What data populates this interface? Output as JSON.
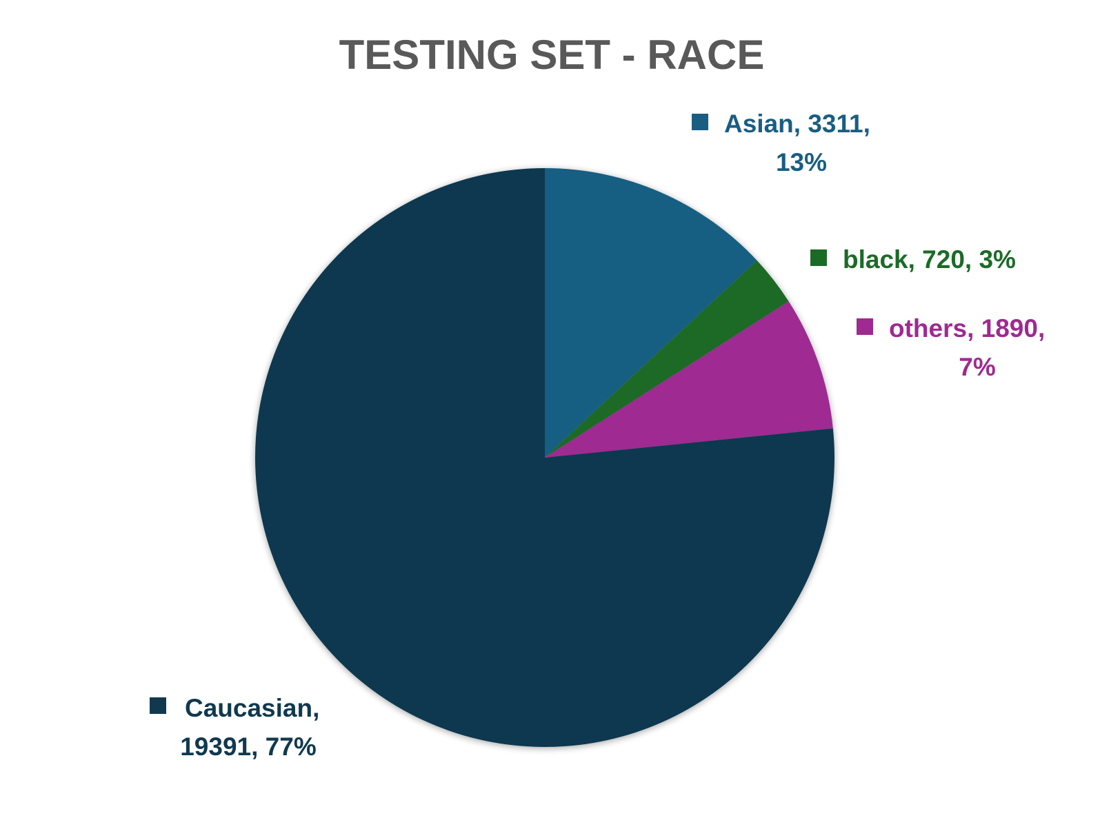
{
  "chart_data": {
    "type": "pie",
    "title": "TESTING SET - RACE",
    "start_angle_deg": 0,
    "direction": "clockwise",
    "slices": [
      {
        "name": "Asian",
        "value": 3311,
        "percent": "13%",
        "color": "#185e82",
        "label_lines": [
          "Asian, 3311,",
          "13%"
        ]
      },
      {
        "name": "black",
        "value": 720,
        "percent": "3%",
        "color": "#1b6b27",
        "label_lines": [
          "black, 720, 3%"
        ]
      },
      {
        "name": "others",
        "value": 1890,
        "percent": "7%",
        "color": "#9e2a92",
        "label_lines": [
          "others, 1890,",
          "7%"
        ]
      },
      {
        "name": "Caucasian",
        "value": 19391,
        "percent": "77%",
        "color": "#10394f",
        "label_lines": [
          "Caucasian,",
          "19391, 77%"
        ]
      }
    ],
    "data_labels": "category, value, percentage",
    "legend_keys_in_labels": true
  }
}
